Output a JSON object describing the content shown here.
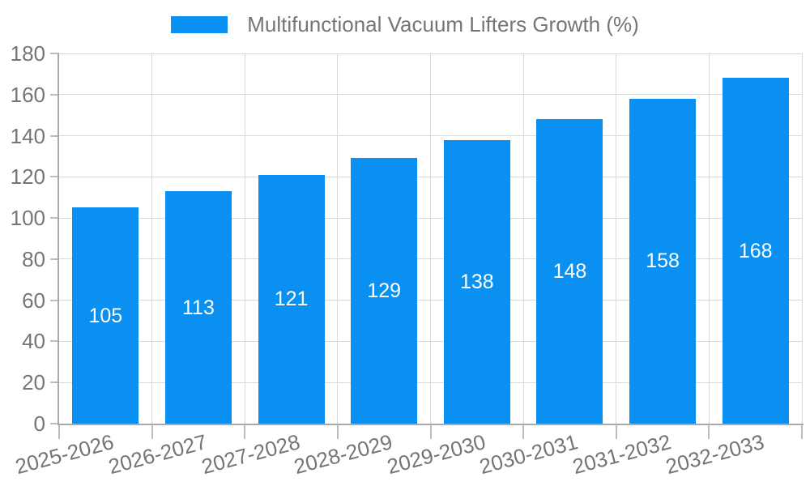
{
  "chart_data": {
    "type": "bar",
    "title": "",
    "legend_position": "top",
    "grid": true,
    "categories": [
      "2025-2026",
      "2026-2027",
      "2027-2028",
      "2028-2029",
      "2029-2030",
      "2030-2031",
      "2031-2032",
      "2032-2033"
    ],
    "series": [
      {
        "name": "Multifunctional Vacuum Lifters Growth (%)",
        "values": [
          105,
          113,
          121,
          129,
          138,
          148,
          158,
          168
        ]
      }
    ],
    "xlabel": "",
    "ylabel": "",
    "ylim": [
      0,
      180
    ],
    "ytick_step": 20,
    "yticks": [
      0,
      20,
      40,
      60,
      80,
      100,
      120,
      140,
      160,
      180
    ]
  },
  "colors": {
    "bar": "#0a90f0",
    "bar_value_text": "#ffffff",
    "axis_text": "#757575",
    "axis_line": "#a8a8a8",
    "gridline": "#d9d9d9",
    "tick": "#bdbdbd",
    "background": "#ffffff"
  }
}
